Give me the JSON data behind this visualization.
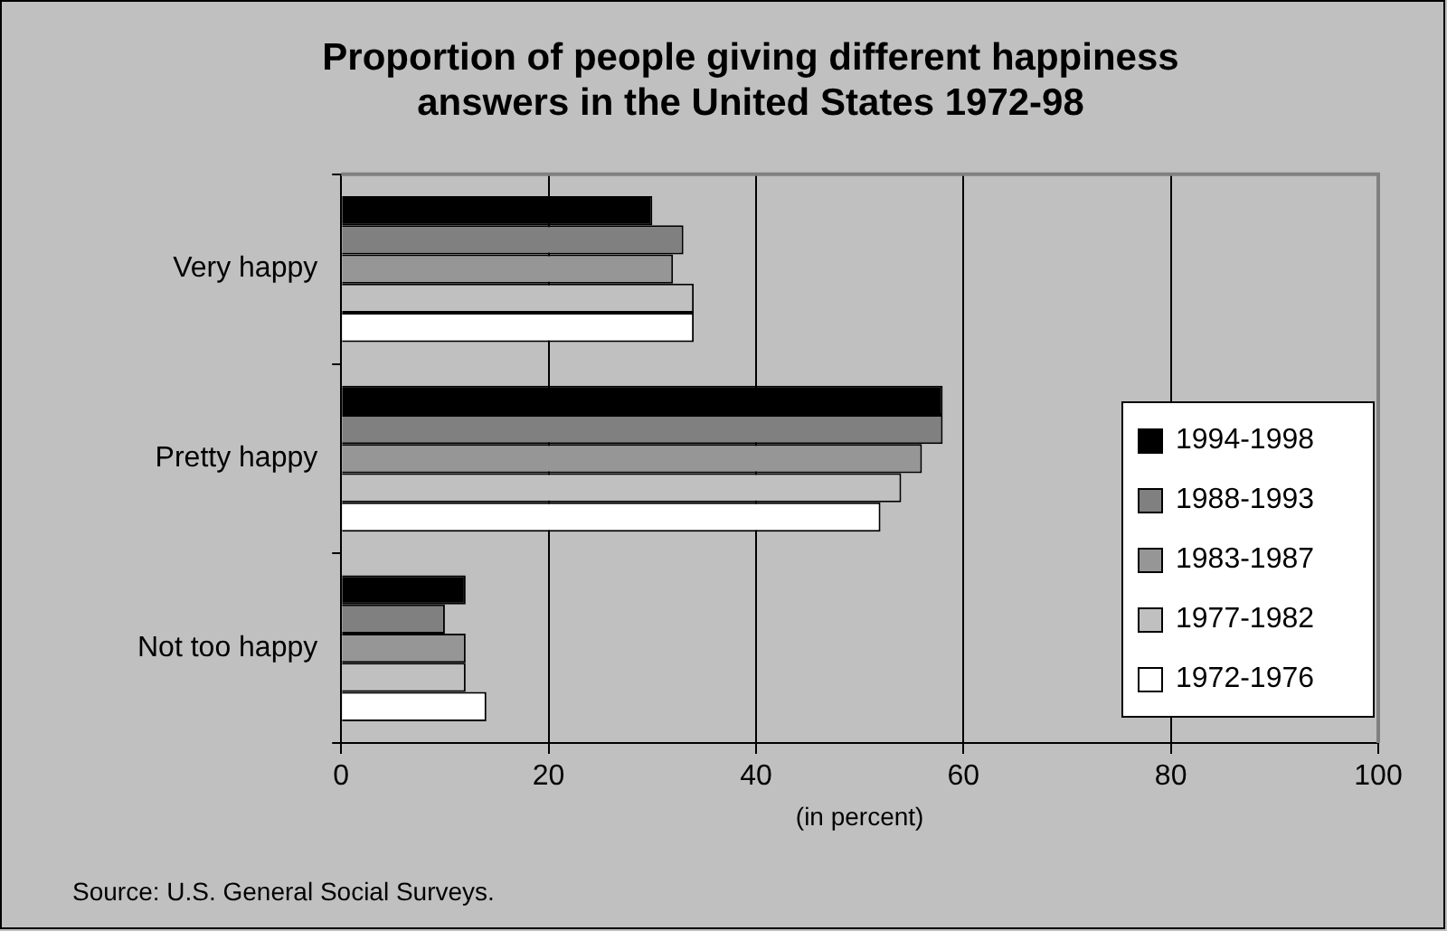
{
  "chart_data": {
    "type": "bar",
    "orientation": "horizontal",
    "title": "Proportion of people giving different happiness answers in the United States 1972-98",
    "xlabel": "(in percent)",
    "categories": [
      "Very happy",
      "Pretty happy",
      "Not too happy"
    ],
    "series": [
      {
        "name": "1994-1998",
        "color": "#000000",
        "values": [
          30,
          58,
          12
        ]
      },
      {
        "name": "1988-1993",
        "color": "#808080",
        "values": [
          33,
          58,
          10
        ]
      },
      {
        "name": "1983-1987",
        "color": "#969696",
        "values": [
          32,
          56,
          12
        ]
      },
      {
        "name": "1977-1982",
        "color": "#c0c0c0",
        "values": [
          34,
          54,
          12
        ]
      },
      {
        "name": "1972-1976",
        "color": "#ffffff",
        "values": [
          34,
          52,
          14
        ]
      }
    ],
    "xlim": [
      0,
      100
    ],
    "xticks": [
      0,
      20,
      40,
      60,
      80,
      100
    ],
    "grid": "x",
    "legend": "right",
    "annotations": [
      "Source: U.S. General Social Surveys."
    ]
  }
}
